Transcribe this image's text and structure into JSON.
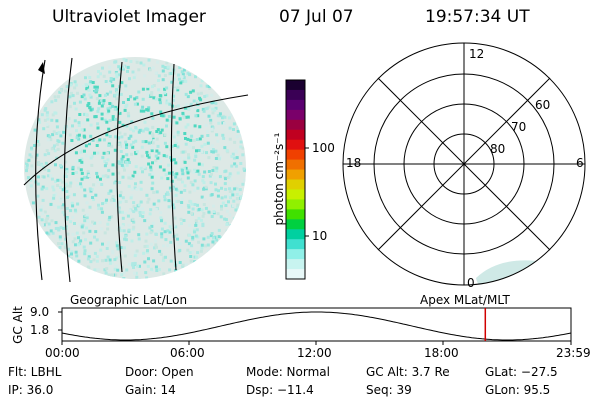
{
  "header": {
    "title": "Ultraviolet Imager",
    "date": "07 Jul 07",
    "time": "19:57:34 UT"
  },
  "colorbar": {
    "unit_label": "photon cm⁻²s⁻¹",
    "ticks": [
      "100",
      "10"
    ],
    "colors": [
      "#1a0030",
      "#3a0055",
      "#5a0070",
      "#7a006a",
      "#9a0040",
      "#c00020",
      "#e01010",
      "#f04000",
      "#f07000",
      "#f0a000",
      "#e0d000",
      "#c8f000",
      "#90f000",
      "#40e000",
      "#00d040",
      "#00d0a0",
      "#40e0d0",
      "#90f0e8",
      "#c8f4f0",
      "#e8f8f8"
    ]
  },
  "polar": {
    "mlt_labels": {
      "top": "12",
      "left": "18",
      "right": "6",
      "bottom": "0"
    },
    "lat_labels": [
      "60",
      "70",
      "80"
    ]
  },
  "strip": {
    "left_title": "Geographic Lat/Lon",
    "right_title": "Apex MLat/MLT",
    "y_axis_label": "GC Alt",
    "y_ticks": [
      "9.0",
      "1.8"
    ],
    "x_ticks": [
      "00:00",
      "06:00",
      "12:00",
      "18:00",
      "23:59"
    ],
    "current_time_fraction": 0.8316
  },
  "info": {
    "flt": "Flt: LBHL",
    "ip": "IP: 36.0",
    "door": "Door: Open",
    "gain": "Gain: 14",
    "mode": "Mode: Normal",
    "dsp": "Dsp:  −11.4",
    "gcalt": "GC Alt: 3.7 Re",
    "seq": "Seq: 39",
    "glat": "GLat: −27.5",
    "glon": "GLon:  95.5"
  }
}
